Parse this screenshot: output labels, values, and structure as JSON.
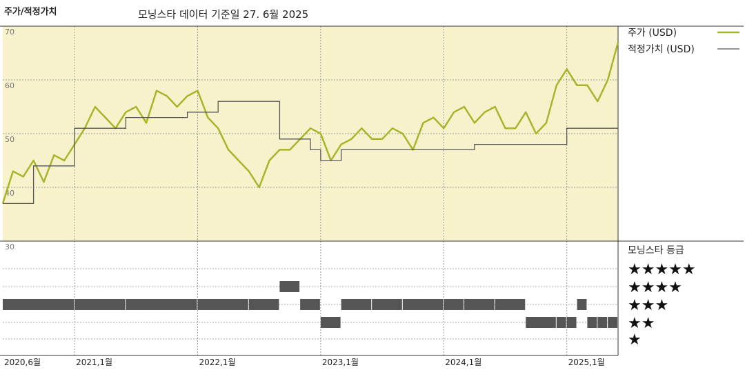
{
  "header": {
    "title": "주가/적정가치",
    "subtitle": "모닝스타 데이터 기준일 27. 6월 2025"
  },
  "colors": {
    "price": "#a8b42a",
    "fair_value": "#555555",
    "plot_bg": "#f7f2cc",
    "bars": "#555555"
  },
  "chart_data": {
    "type": "line",
    "title": "주가/적정가치",
    "x_ticks": [
      "2020,6월",
      "2021,1월",
      "2022,1월",
      "2023,1월",
      "2024,1월",
      "2025,1월"
    ],
    "x_range": [
      "2020-06",
      "2025-06"
    ],
    "y_range": [
      30,
      70
    ],
    "y_ticks": [
      "70",
      "60",
      "50",
      "40",
      "30"
    ],
    "legend_position": "right",
    "series": [
      {
        "name": "주가 (USD)",
        "x": [
          "2020-06",
          "2020-07",
          "2020-08",
          "2020-09",
          "2020-10",
          "2020-11",
          "2020-12",
          "2021-01",
          "2021-02",
          "2021-03",
          "2021-04",
          "2021-05",
          "2021-06",
          "2021-07",
          "2021-08",
          "2021-09",
          "2021-10",
          "2021-11",
          "2021-12",
          "2022-01",
          "2022-02",
          "2022-03",
          "2022-04",
          "2022-05",
          "2022-06",
          "2022-07",
          "2022-08",
          "2022-09",
          "2022-10",
          "2022-11",
          "2022-12",
          "2023-01",
          "2023-02",
          "2023-03",
          "2023-04",
          "2023-05",
          "2023-06",
          "2023-07",
          "2023-08",
          "2023-09",
          "2023-10",
          "2023-11",
          "2023-12",
          "2024-01",
          "2024-02",
          "2024-03",
          "2024-04",
          "2024-05",
          "2024-06",
          "2024-07",
          "2024-08",
          "2024-09",
          "2024-10",
          "2024-11",
          "2024-12",
          "2025-01",
          "2025-02",
          "2025-03",
          "2025-04",
          "2025-05",
          "2025-06"
        ],
        "values": [
          37,
          43,
          42,
          45,
          41,
          46,
          45,
          48,
          51,
          55,
          53,
          51,
          54,
          55,
          52,
          58,
          57,
          55,
          57,
          58,
          53,
          51,
          47,
          45,
          43,
          40,
          45,
          47,
          47,
          49,
          51,
          50,
          45,
          48,
          49,
          51,
          49,
          49,
          51,
          50,
          47,
          52,
          53,
          51,
          54,
          55,
          52,
          54,
          55,
          51,
          51,
          54,
          50,
          52,
          59,
          62,
          59,
          59,
          56,
          60,
          67
        ]
      },
      {
        "name": "적정가치 (USD)",
        "x": [
          "2020-06",
          "2020-09",
          "2021-01",
          "2021-06",
          "2021-12",
          "2022-03",
          "2022-09",
          "2022-12",
          "2023-01",
          "2023-03",
          "2024-04",
          "2025-01",
          "2025-06"
        ],
        "values": [
          37,
          44,
          51,
          53,
          54,
          56,
          49,
          47,
          45,
          47,
          48,
          51,
          51
        ]
      }
    ],
    "rating": {
      "title": "모닝스타 등급",
      "levels": [
        "★★★★★",
        "★★★★",
        "★★★",
        "★★",
        "★"
      ],
      "x": [
        "2020-06",
        "2021-01",
        "2021-06",
        "2022-01",
        "2022-06",
        "2022-09",
        "2022-11",
        "2023-01",
        "2023-03",
        "2023-06",
        "2023-09",
        "2024-01",
        "2024-03",
        "2024-06",
        "2024-09",
        "2024-12",
        "2025-01",
        "2025-02",
        "2025-03",
        "2025-04",
        "2025-05",
        "2025-06"
      ],
      "stars": [
        3,
        3,
        3,
        3,
        3,
        4,
        3,
        2,
        3,
        3,
        3,
        3,
        3,
        3,
        2,
        2,
        2,
        3,
        2,
        2,
        2,
        2
      ]
    }
  }
}
